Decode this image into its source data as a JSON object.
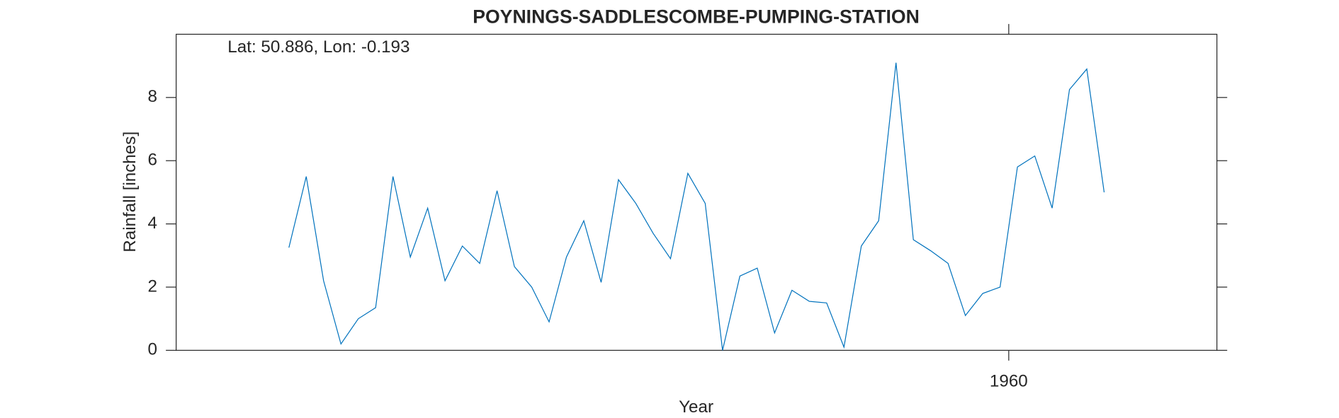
{
  "chart_data": {
    "type": "line",
    "title": "POYNINGS-SADDLESCOMBE-PUMPING-STATION",
    "annotation": "Lat: 50.886, Lon: -0.193",
    "x_label": "Year",
    "y_label": "Rainfall [inches]",
    "xlim": [
      1912,
      1972
    ],
    "xticks": [
      1960
    ],
    "ylim": [
      0,
      10
    ],
    "yticks": [
      0,
      2,
      4,
      6,
      8
    ],
    "grid": false,
    "series": [
      {
        "name": "Rainfall",
        "color": "#0072bd",
        "x": [
          1918.5,
          1919.5,
          1920.5,
          1921.5,
          1922.5,
          1923.5,
          1924.5,
          1925.5,
          1926.5,
          1927.5,
          1928.5,
          1929.5,
          1930.5,
          1931.5,
          1932.5,
          1933.5,
          1934.5,
          1935.5,
          1936.5,
          1937.5,
          1938.5,
          1939.5,
          1940.5,
          1941.5,
          1942.5,
          1943.5,
          1944.5,
          1945.5,
          1946.5,
          1947.5,
          1948.5,
          1949.5,
          1950.5,
          1951.5,
          1952.5,
          1953.5,
          1954.5,
          1955.5,
          1956.5,
          1957.5,
          1958.5,
          1959.5,
          1960.5,
          1961.5,
          1962.5,
          1963.5,
          1964.5,
          1965.5
        ],
        "values": [
          3.25,
          5.5,
          2.2,
          0.2,
          1.0,
          1.35,
          5.5,
          2.95,
          4.5,
          2.2,
          3.3,
          2.75,
          5.05,
          2.65,
          2.0,
          0.9,
          2.95,
          4.1,
          2.15,
          5.4,
          4.65,
          3.7,
          2.9,
          5.6,
          4.65,
          0.0,
          2.35,
          2.6,
          0.55,
          1.9,
          1.55,
          1.5,
          0.1,
          3.3,
          4.1,
          9.1,
          3.5,
          3.15,
          2.75,
          1.1,
          1.8,
          2.0,
          5.8,
          6.15,
          4.5,
          8.25,
          8.9,
          5.0
        ]
      }
    ]
  }
}
